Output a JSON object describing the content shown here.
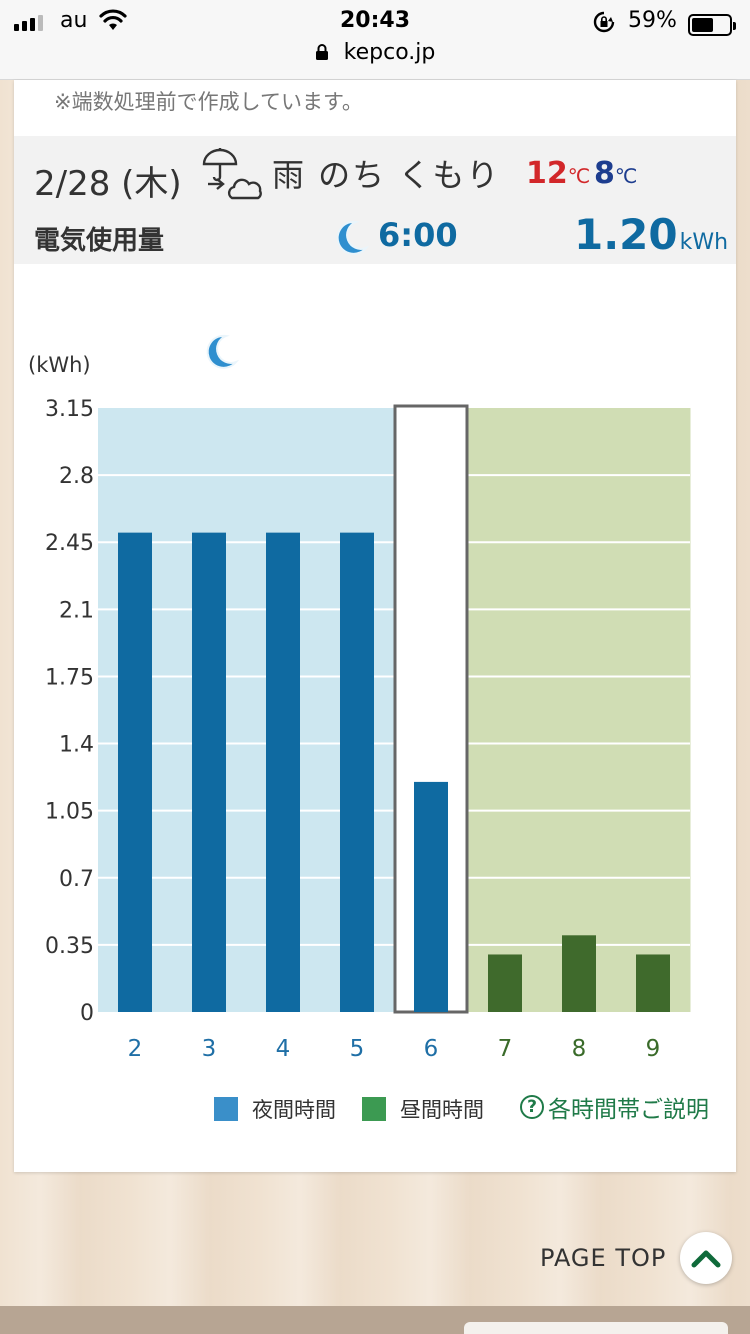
{
  "status_bar": {
    "carrier": "au",
    "time": "20:43",
    "battery_percent": "59%",
    "battery_level": 0.59,
    "url": "kepco.jp"
  },
  "note": "※端数処理前で作成しています。",
  "weather": {
    "date": "2/28 (木)",
    "icon": "umbrella-to-cloud-icon",
    "text": "雨 のち くもり",
    "high_value": "12",
    "high_unit": "℃",
    "low_value": "8",
    "low_unit": "℃"
  },
  "usage": {
    "label": "電気使用量",
    "time": "6:00",
    "value": "1.20",
    "unit": "kWh"
  },
  "chart_data": {
    "type": "bar",
    "ylabel": "(kWh)",
    "ylim": [
      0,
      3.15
    ],
    "yticks": [
      "3.15",
      "2.8",
      "2.45",
      "2.1",
      "1.75",
      "1.4",
      "1.05",
      "0.7",
      "0.35",
      "0"
    ],
    "categories": [
      "2",
      "3",
      "4",
      "5",
      "6",
      "7",
      "8",
      "9"
    ],
    "values": [
      2.5,
      2.5,
      2.5,
      2.5,
      1.2,
      0.3,
      0.4,
      0.3
    ],
    "period": [
      "night",
      "night",
      "night",
      "night",
      "night",
      "day",
      "day",
      "day"
    ],
    "selected": "6",
    "grid": true,
    "colors": {
      "night_bar": "#0f6aa1",
      "day_bar": "#3f6a2c",
      "night_bg": "#cde7f0",
      "day_bg": "#d0ddb4",
      "night_label": "#1f6fa6",
      "day_label": "#3a6b2a"
    },
    "legend": [
      {
        "label": "夜間時間",
        "color": "#3a8fc9"
      },
      {
        "label": "昼間時間",
        "color": "#3c9a52"
      }
    ]
  },
  "legend_help": "各時間帯ご説明",
  "page_top": "PAGE TOP"
}
